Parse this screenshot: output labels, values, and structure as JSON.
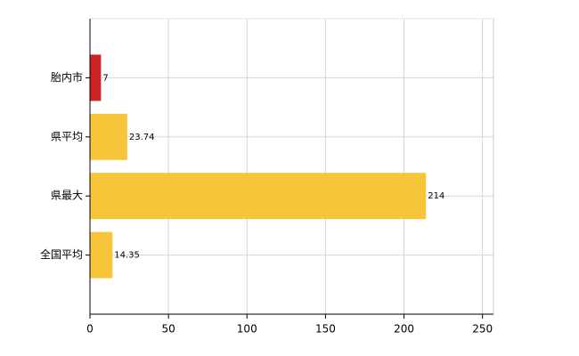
{
  "chart_data": {
    "type": "bar",
    "orientation": "horizontal",
    "categories": [
      "胎内市",
      "県平均",
      "県最大",
      "全国平均"
    ],
    "values": [
      7,
      23.74,
      214,
      14.35
    ],
    "colors": [
      "#cc2222",
      "#f7c53a",
      "#f7c53a",
      "#f7c53a"
    ],
    "xlim": [
      0,
      257
    ],
    "xticks": [
      0,
      50,
      100,
      150,
      200,
      250
    ],
    "grid": true
  }
}
